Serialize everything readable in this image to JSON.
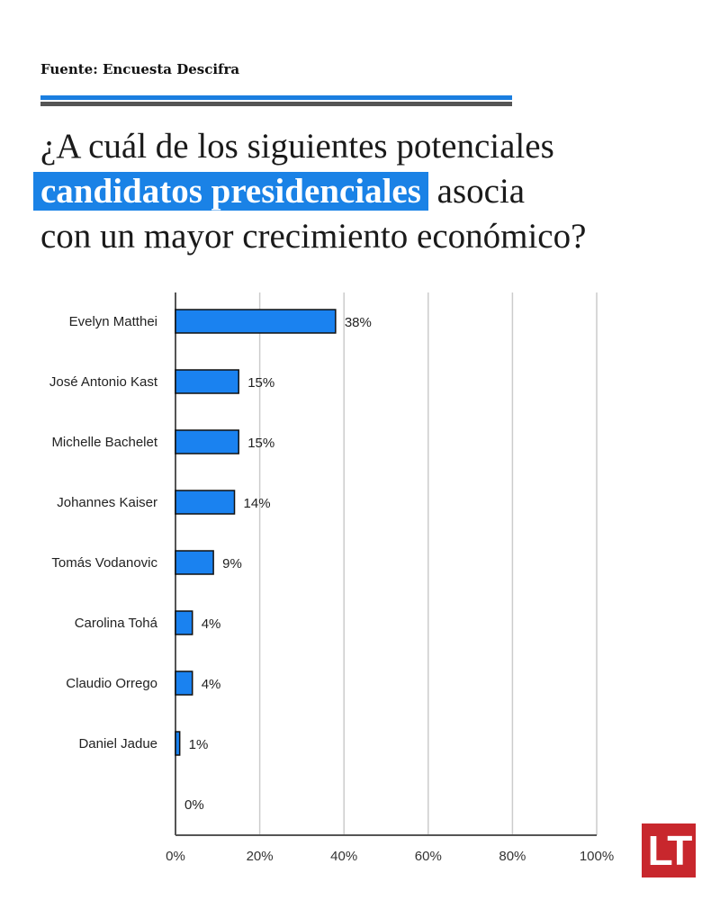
{
  "source": "Fuente: Encuesta Descifra",
  "title": {
    "before": "¿A cuál de los siguientes potenciales",
    "highlight": "candidatos presidenciales",
    "after_highlight": " asocia",
    "line3": "con un mayor crecimiento económico?"
  },
  "colors": {
    "bar": "#1a82f0",
    "accent": "#1a7ee0",
    "logo": "#c8272d"
  },
  "logo": "LT",
  "chart_data": {
    "type": "bar",
    "orientation": "horizontal",
    "categories": [
      "Evelyn Matthei",
      "José Antonio Kast",
      "Michelle Bachelet",
      "Johannes Kaiser",
      "Tomás Vodanovic",
      "Carolina Tohá",
      "Claudio Orrego",
      "Daniel Jadue",
      ""
    ],
    "values": [
      38,
      15,
      15,
      14,
      9,
      4,
      4,
      1,
      0
    ],
    "data_labels": [
      "38%",
      "15%",
      "15%",
      "14%",
      "9%",
      "4%",
      "4%",
      "1%",
      "0%"
    ],
    "xlim": [
      0,
      100
    ],
    "xticks": [
      "0%",
      "20%",
      "40%",
      "60%",
      "80%",
      "100%"
    ],
    "grid": true
  }
}
